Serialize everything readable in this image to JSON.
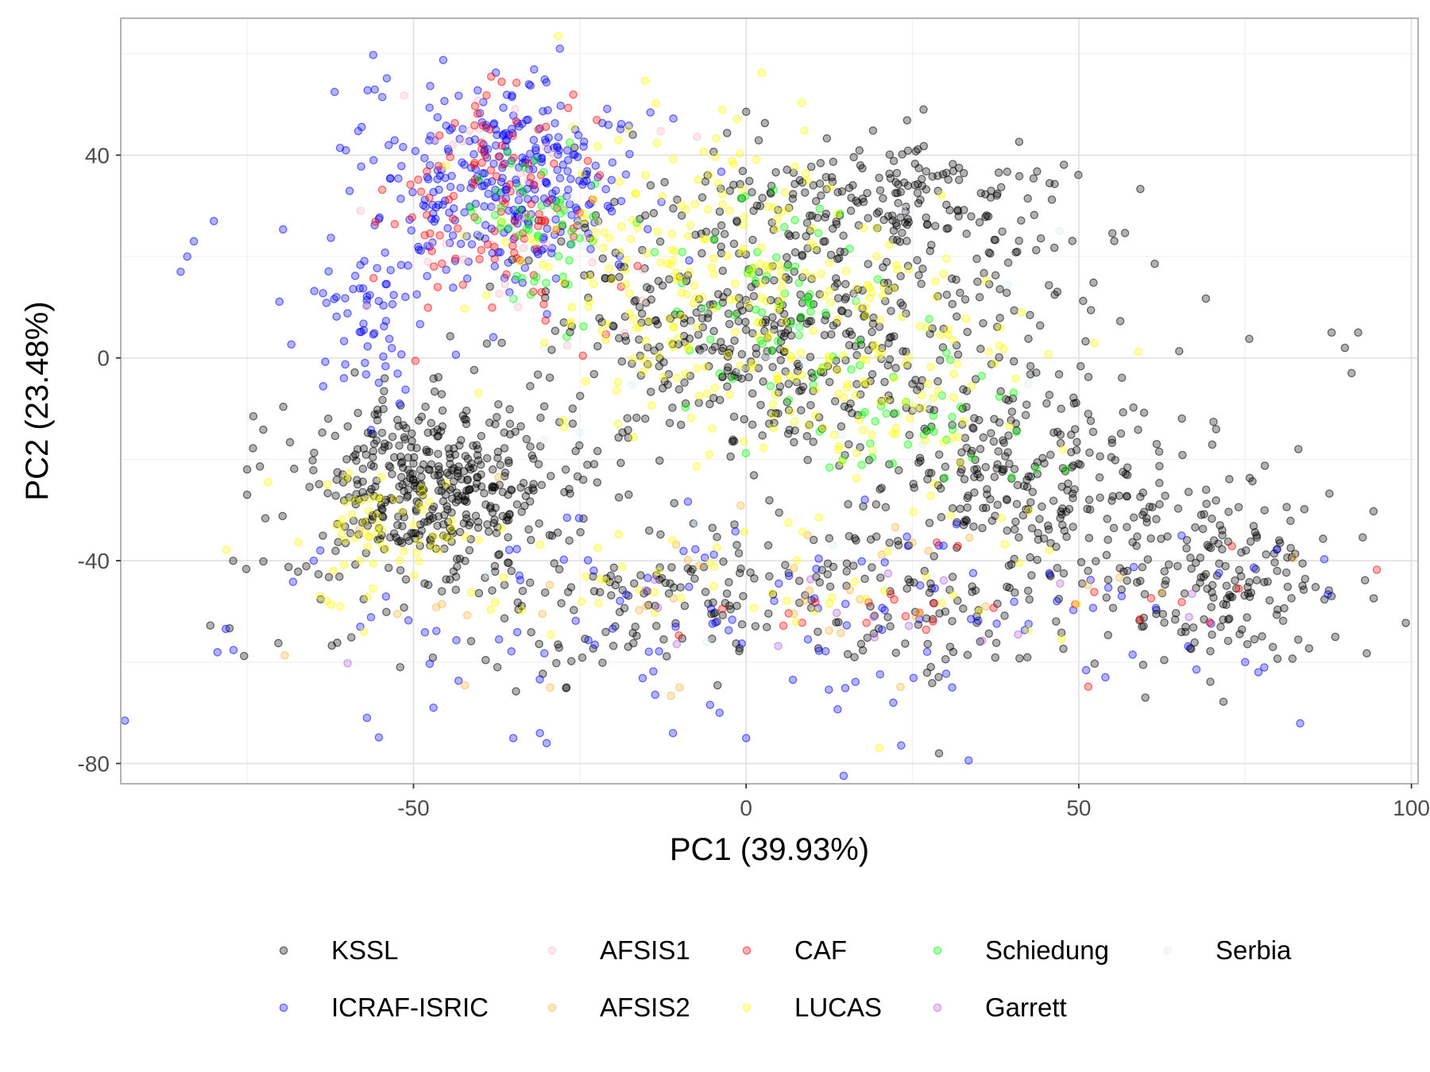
{
  "chart_data": {
    "type": "scatter",
    "title": "",
    "xlabel": "PC1 (39.93%)",
    "ylabel": "PC2 (23.48%)",
    "xlim": [
      -94,
      101
    ],
    "ylim": [
      -84,
      67
    ],
    "x_ticks": [
      -50,
      0,
      50,
      100
    ],
    "x_tick_labels": [
      "-50",
      "0",
      "50",
      "100"
    ],
    "y_ticks": [
      -80,
      -40,
      0,
      40
    ],
    "y_tick_labels": [
      "-80",
      "-40",
      "0",
      "40"
    ],
    "grid": true,
    "legend_position": "bottom",
    "series": [
      {
        "name": "KSSL",
        "color": "#000000",
        "count": 1800,
        "clusters": [
          {
            "cx": -48,
            "cy": -25,
            "sx": 10,
            "sy": 8,
            "w": 0.22
          },
          {
            "cx": 5,
            "cy": 5,
            "sx": 22,
            "sy": 14,
            "w": 0.3
          },
          {
            "cx": 45,
            "cy": -25,
            "sx": 12,
            "sy": 10,
            "w": 0.13
          },
          {
            "cx": 20,
            "cy": 32,
            "sx": 14,
            "sy": 6,
            "w": 0.1
          },
          {
            "cx": 5,
            "cy": -48,
            "sx": 40,
            "sy": 8,
            "w": 0.17
          },
          {
            "cx": 72,
            "cy": -42,
            "sx": 9,
            "sy": 9,
            "w": 0.08
          }
        ],
        "points": [
          [
            -75,
            -22
          ],
          [
            -75,
            -27
          ],
          [
            88,
            5
          ],
          [
            92,
            5
          ],
          [
            90,
            2
          ],
          [
            91,
            -3
          ],
          [
            83,
            -18
          ],
          [
            88,
            -47
          ],
          [
            29,
            -78
          ],
          [
            -52,
            -61
          ],
          [
            -27,
            -65
          ],
          [
            60,
            -67
          ]
        ]
      },
      {
        "name": "ICRAF-ISRIC",
        "color": "#0000ff",
        "count": 520,
        "clusters": [
          {
            "cx": -35,
            "cy": 35,
            "sx": 10,
            "sy": 10,
            "w": 0.62
          },
          {
            "cx": -55,
            "cy": 8,
            "sx": 5,
            "sy": 10,
            "w": 0.14
          },
          {
            "cx": 10,
            "cy": -52,
            "sx": 38,
            "sy": 10,
            "w": 0.24
          }
        ],
        "points": [
          [
            -85,
            17
          ],
          [
            -84,
            20
          ],
          [
            -83,
            23
          ],
          [
            -80,
            27
          ],
          [
            -56,
            39
          ],
          [
            -57,
            -71
          ],
          [
            -47,
            -69
          ],
          [
            -35,
            -75
          ],
          [
            -31,
            -74
          ],
          [
            -30,
            -76
          ],
          [
            -11,
            -74
          ],
          [
            -4,
            -70
          ],
          [
            0,
            -75
          ],
          [
            -64,
            -38
          ],
          [
            -65,
            -40
          ],
          [
            77,
            -62
          ],
          [
            54,
            -63
          ],
          [
            75,
            -60
          ],
          [
            -28,
            61
          ]
        ]
      },
      {
        "name": "AFSIS1",
        "color": "#ffb6c1",
        "count": 40,
        "clusters": [
          {
            "cx": -35,
            "cy": 30,
            "sx": 10,
            "sy": 12,
            "w": 1
          }
        ],
        "points": []
      },
      {
        "name": "CAF",
        "color": "#ff0000",
        "count": 140,
        "clusters": [
          {
            "cx": -38,
            "cy": 30,
            "sx": 9,
            "sy": 13,
            "w": 0.8
          },
          {
            "cx": 40,
            "cy": -48,
            "sx": 22,
            "sy": 6,
            "w": 0.2
          }
        ],
        "points": []
      },
      {
        "name": "Schiedung",
        "color": "#00ff00",
        "count": 150,
        "clusters": [
          {
            "cx": -30,
            "cy": 25,
            "sx": 6,
            "sy": 8,
            "w": 0.35
          },
          {
            "cx": 5,
            "cy": 12,
            "sx": 8,
            "sy": 10,
            "w": 0.35
          },
          {
            "cx": 25,
            "cy": -10,
            "sx": 10,
            "sy": 8,
            "w": 0.3
          }
        ],
        "points": []
      },
      {
        "name": "Serbia",
        "color": "#d9ecf7",
        "count": 30,
        "clusters": [
          {
            "cx": -5,
            "cy": 0,
            "sx": 25,
            "sy": 20,
            "w": 1
          }
        ],
        "points": []
      },
      {
        "name": "AFSIS2",
        "color": "#f7b23b",
        "count": 40,
        "clusters": [
          {
            "cx": 0,
            "cy": -45,
            "sx": 35,
            "sy": 10,
            "w": 1
          }
        ],
        "points": [
          [
            -10,
            -65
          ],
          [
            36,
            -49
          ]
        ]
      },
      {
        "name": "LUCAS",
        "color": "#ffff00",
        "count": 460,
        "clusters": [
          {
            "cx": -5,
            "cy": 15,
            "sx": 15,
            "sy": 15,
            "w": 0.55
          },
          {
            "cx": 25,
            "cy": -5,
            "sx": 12,
            "sy": 12,
            "w": 0.2
          },
          {
            "cx": -55,
            "cy": -32,
            "sx": 6,
            "sy": 5,
            "w": 0.12
          },
          {
            "cx": 0,
            "cy": -45,
            "sx": 30,
            "sy": 6,
            "w": 0.13
          }
        ],
        "points": [
          [
            -64,
            -47
          ],
          [
            -63,
            -48
          ],
          [
            -62,
            -42
          ],
          [
            -61,
            -49
          ],
          [
            -58,
            -40
          ],
          [
            20,
            -77
          ]
        ]
      },
      {
        "name": "Garrett",
        "color": "#b15fd6",
        "count": 18,
        "clusters": [
          {
            "cx": 30,
            "cy": -50,
            "sx": 30,
            "sy": 6,
            "w": 1
          }
        ],
        "points": []
      }
    ]
  },
  "legend": {
    "rows": [
      [
        "KSSL",
        "AFSIS1",
        "CAF",
        "Schiedung",
        "Serbia"
      ],
      [
        "ICRAF-ISRIC",
        "AFSIS2",
        "LUCAS",
        "Garrett"
      ]
    ]
  }
}
